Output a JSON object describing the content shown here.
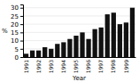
{
  "chart_data": {
    "type": "bar",
    "categories": [
      "1991",
      null,
      "1992",
      null,
      "1993",
      null,
      "1994",
      null,
      "1995",
      null,
      "1996",
      null,
      "1997",
      null,
      "1998",
      null,
      "1999",
      null
    ],
    "values": [
      2,
      4,
      4,
      6,
      5,
      8,
      9,
      11,
      13,
      15,
      11,
      17,
      18,
      26,
      27,
      20,
      21,
      30
    ],
    "color": "#111111",
    "xlabel": "Year",
    "ylabel": "%",
    "ylim": [
      0,
      32
    ],
    "yticks": [
      0,
      5,
      10,
      15,
      20,
      25,
      30
    ],
    "grid": true
  }
}
